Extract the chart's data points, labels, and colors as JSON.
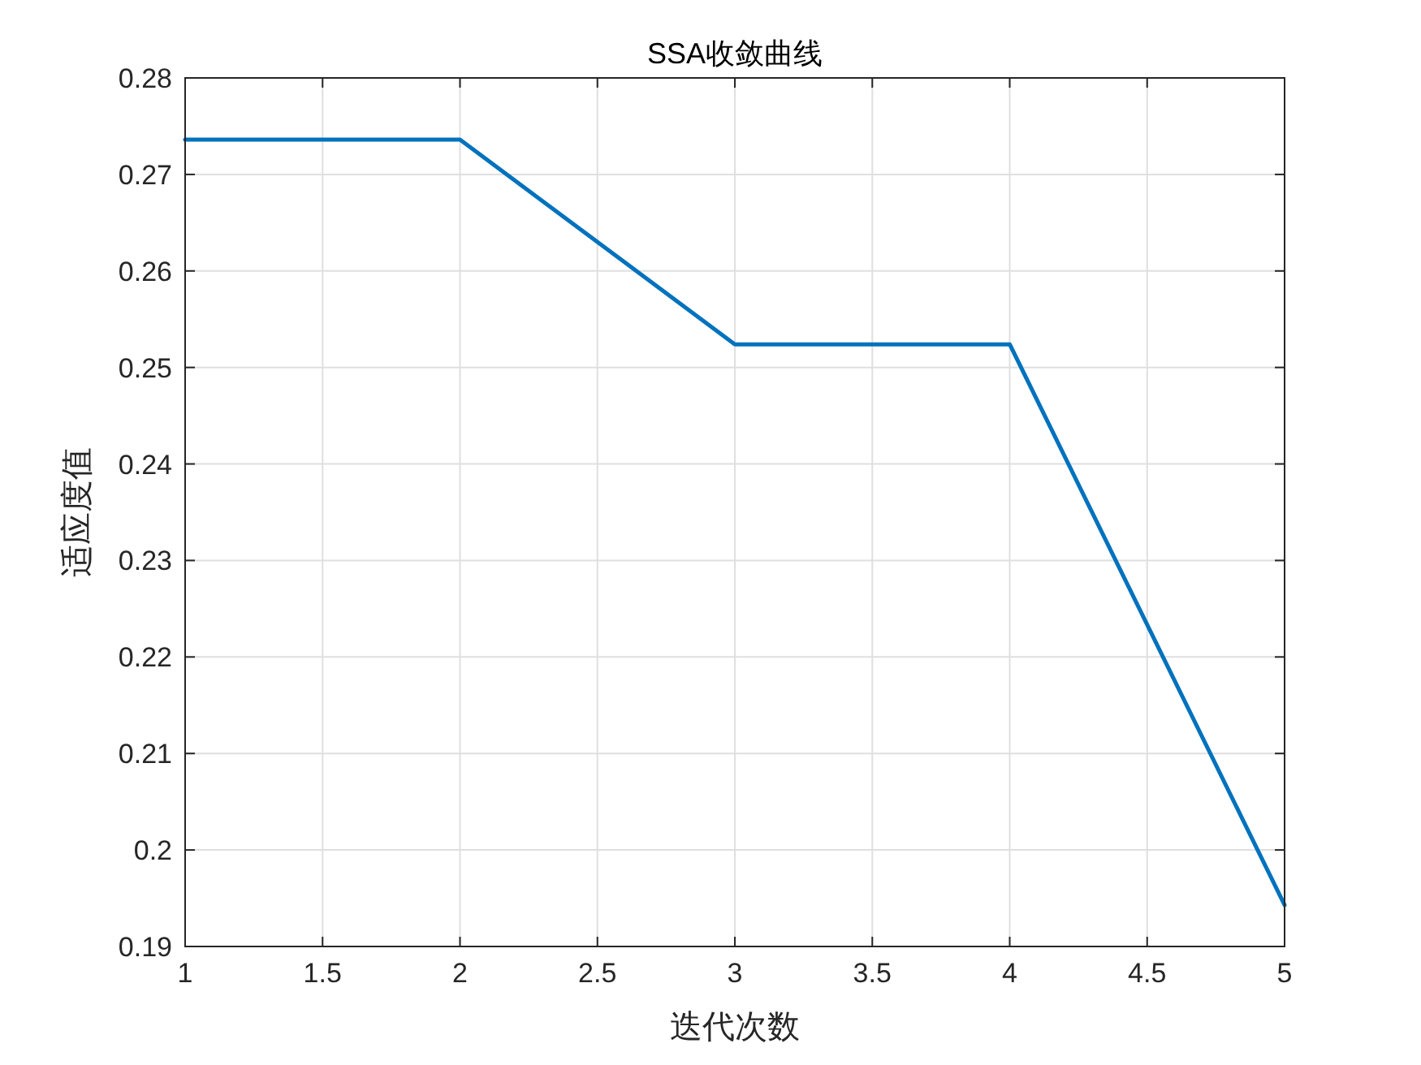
{
  "chart_data": {
    "type": "line",
    "title": "SSA收敛曲线",
    "xlabel": "迭代次数",
    "ylabel": "适应度值",
    "x": [
      1,
      2,
      3,
      4,
      5
    ],
    "series": [
      {
        "color": "#0072bd",
        "values": [
          0.2736,
          0.2736,
          0.2524,
          0.2524,
          0.1943
        ]
      }
    ],
    "xlim": [
      1,
      5
    ],
    "xticks": [
      1,
      1.5,
      2,
      2.5,
      3,
      3.5,
      4,
      4.5,
      5
    ],
    "ylim": [
      0.19,
      0.28
    ],
    "yticks": [
      0.19,
      0.2,
      0.21,
      0.22,
      0.23,
      0.24,
      0.25,
      0.26,
      0.27,
      0.28
    ],
    "grid": true,
    "line_style": "solid",
    "marker": "none"
  }
}
